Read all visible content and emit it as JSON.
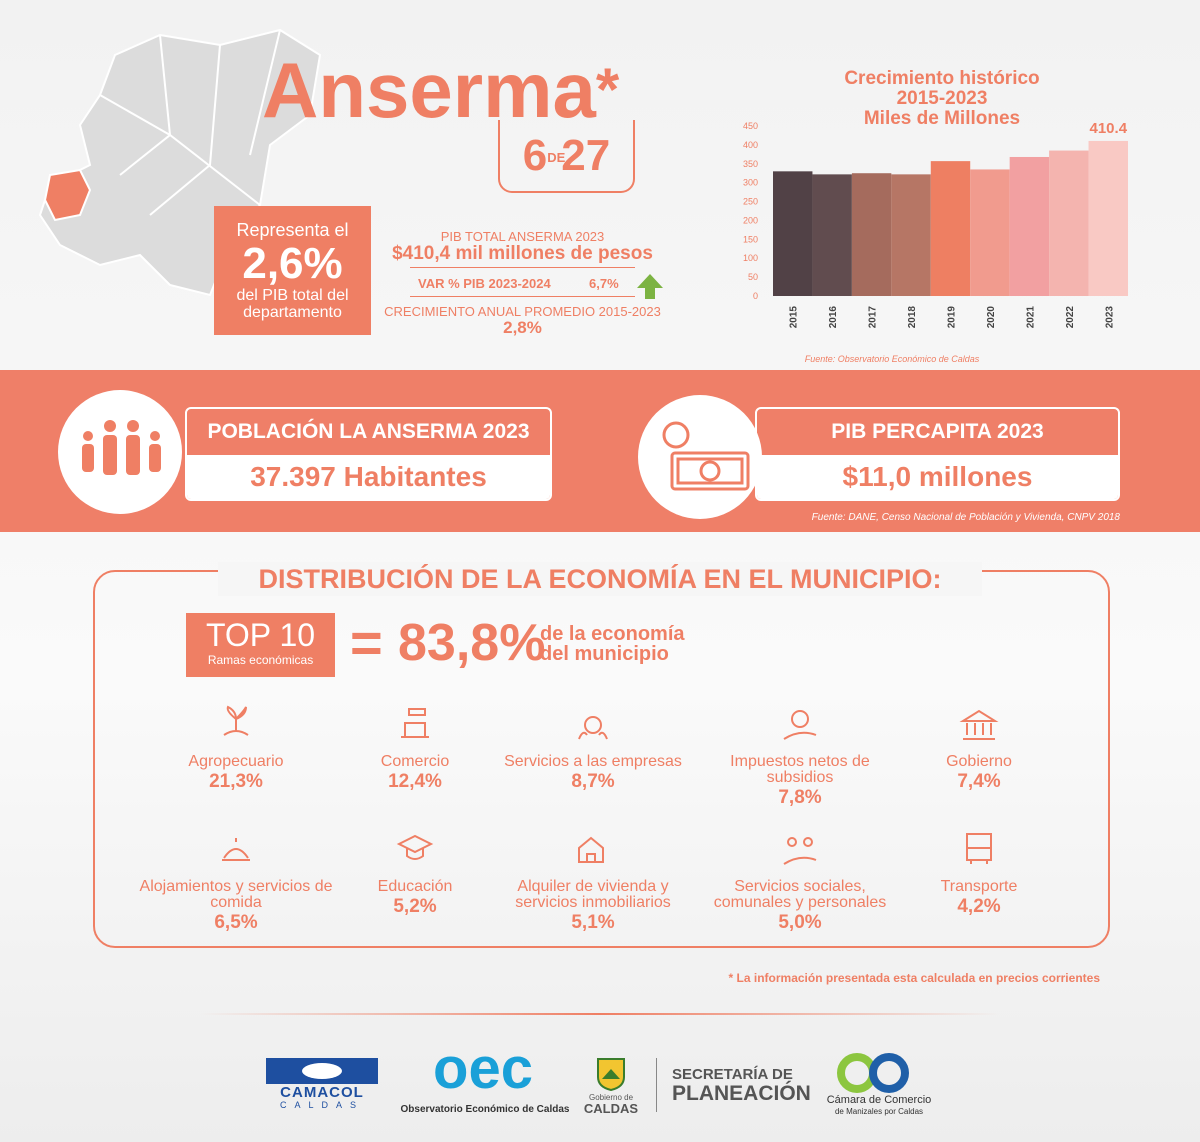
{
  "header": {
    "title": "Anserma",
    "asterisk": "*",
    "rank": "6",
    "rank_of": "DE",
    "rank_total": "27"
  },
  "pib_box": {
    "line1": "Representa el",
    "value": "2,6%",
    "line2": "del PIB total del departamento"
  },
  "pib_info": {
    "label": "PIB TOTAL ANSERMA 2023",
    "value": "$410,4 mil millones de pesos",
    "var_label": "VAR % PIB 2023-2024",
    "var_value": "6,7%",
    "growth_label": "CRECIMIENTO ANUAL PROMEDIO 2015-2023",
    "growth_value": "2,8%"
  },
  "chart_data": {
    "type": "bar",
    "title": [
      "Crecimiento histórico",
      "2015-2023",
      "Miles de Millones"
    ],
    "categories": [
      "2015",
      "2016",
      "2017",
      "2018",
      "2019",
      "2020",
      "2021",
      "2022",
      "2023"
    ],
    "values": [
      330,
      322,
      325,
      322,
      357,
      335,
      368,
      385,
      410.4
    ],
    "colors": [
      "#514146",
      "#614c4f",
      "#a56b5d",
      "#b67665",
      "#ee7f62",
      "#f19b8e",
      "#f2a0a1",
      "#f4b4af",
      "#f9c9c4"
    ],
    "labeled": [
      8
    ],
    "ylim": [
      0,
      450
    ],
    "yticks": [
      0,
      50,
      100,
      150,
      200,
      250,
      300,
      350,
      400,
      450
    ],
    "source": "Fuente: Observatorio Económico de Caldas"
  },
  "population": {
    "title": "POBLACIÓN LA ANSERMA 2023",
    "value": "37.397 Habitantes"
  },
  "pib_percapita": {
    "title": "PIB PERCAPITA 2023",
    "value": "$11,0 millones"
  },
  "band_source": "Fuente: DANE, Censo Nacional de Población y Vivienda, CNPV 2018",
  "distribution": {
    "title": "DISTRIBUCIÓN DE LA ECONOMÍA EN EL MUNICIPIO:",
    "top": "TOP 10",
    "top_sub": "Ramas económicas",
    "equals": "=",
    "share": "83,8%",
    "share_text": "de la economía del municipio",
    "sectors": [
      {
        "name": "Agropecuario",
        "value": "21,3%"
      },
      {
        "name": "Comercio",
        "value": "12,4%"
      },
      {
        "name": "Servicios a las empresas",
        "value": "8,7%"
      },
      {
        "name": "Impuestos netos de subsidios",
        "value": "7,8%"
      },
      {
        "name": "Gobierno",
        "value": "7,4%"
      },
      {
        "name": "Alojamientos y servicios de comida",
        "value": "6,5%"
      },
      {
        "name": "Educación",
        "value": "5,2%"
      },
      {
        "name": "Alquiler de vivienda y servicios inmobiliarios",
        "value": "5,1%"
      },
      {
        "name": "Servicios sociales, comunales y personales",
        "value": "5,0%"
      },
      {
        "name": "Transporte",
        "value": "4,2%"
      }
    ],
    "note": "* La información presentada esta calculada en precios corrientes"
  },
  "logos": {
    "camacol": "CAMACOL",
    "camacol_sub": "CALDAS",
    "oec": "oec",
    "oec_sub": "Observatorio Económico de Caldas",
    "gob": "Gobierno de",
    "gob_sub": "CALDAS",
    "sec1": "SECRETARÍA DE",
    "sec2": "PLANEACIÓN",
    "cc": "Cámara de Comercio",
    "cc_sub": "de Manizales por Caldas"
  }
}
